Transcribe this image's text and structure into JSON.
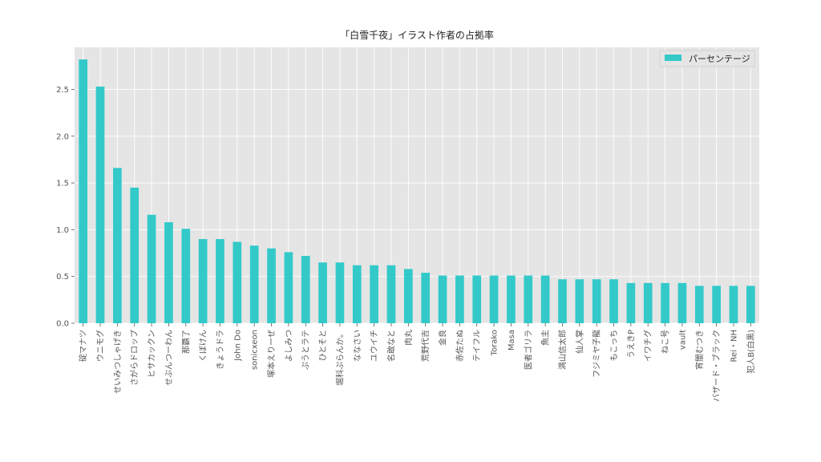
{
  "chart_data": {
    "type": "bar",
    "title": "「白雪千夜」イラスト作者の占拠率",
    "xlabel": "",
    "ylabel": "",
    "ylim": [
      0,
      2.95
    ],
    "yticks": [
      0.0,
      0.5,
      1.0,
      1.5,
      2.0,
      2.5
    ],
    "ytick_labels": [
      "0.0",
      "0.5",
      "1.0",
      "1.5",
      "2.0",
      "2.5"
    ],
    "grid": true,
    "legend_position": "top-right",
    "categories": [
      "碇マナツ",
      "ウニモグ",
      "せいみつしゃげき",
      "さがらドロップ",
      "ヒサカックン",
      "せぶんつーわん",
      "那覇了",
      "くぼけん",
      "きょうドラ",
      "John Do",
      "sonicxeon",
      "塚本えりーぜ",
      "よしみつ",
      "ぷうとラテ",
      "ひとそと",
      "堀科ぷらんか。",
      "ななさい",
      "ユウイチ",
      "名敢なと",
      "肉丸",
      "荒野代吉",
      "金良",
      "赤佐たぬ",
      "テイフル",
      "Torako",
      "Masa",
      "医者ゴリラ",
      "魚主",
      "満山信太郎",
      "仙人掌",
      "フジミヤ子龍",
      "もこっち",
      "うえきP",
      "イワチグ",
      "ねこ号",
      "vault",
      "宵闇むつき",
      "バザード・ブラック",
      "Rei・NH",
      "犯人B(白黒)"
    ],
    "series": [
      {
        "name": "パーセンテージ",
        "color": "#33c9c9",
        "values": [
          2.82,
          2.53,
          1.66,
          1.45,
          1.16,
          1.08,
          1.01,
          0.9,
          0.9,
          0.87,
          0.83,
          0.8,
          0.76,
          0.72,
          0.65,
          0.65,
          0.62,
          0.62,
          0.62,
          0.58,
          0.54,
          0.51,
          0.51,
          0.51,
          0.51,
          0.51,
          0.51,
          0.51,
          0.47,
          0.47,
          0.47,
          0.47,
          0.43,
          0.43,
          0.43,
          0.43,
          0.4,
          0.4,
          0.4,
          0.4
        ]
      }
    ],
    "colors": {
      "plot_background": "#e5e5e5",
      "grid": "#ffffff",
      "bar": "#33c9c9"
    }
  }
}
